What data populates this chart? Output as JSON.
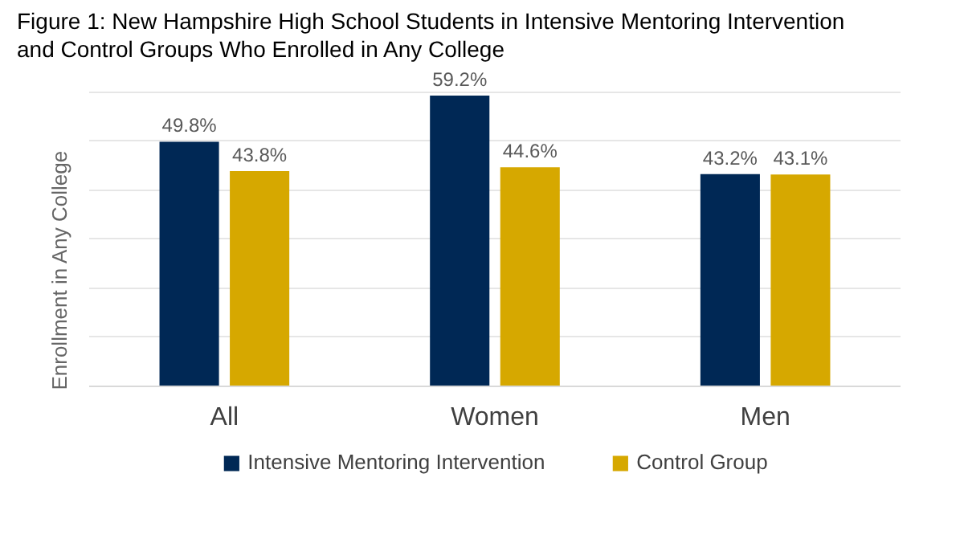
{
  "chart_data": {
    "type": "bar",
    "title": "Figure 1: New Hampshire High School Students in Intensive Mentoring Intervention\nand Control Groups Who Enrolled in Any College",
    "ylabel": "Enrollment in Any College",
    "categories": [
      "All",
      "Women",
      "Men"
    ],
    "series": [
      {
        "name": "Intensive Mentoring Intervention",
        "color": "#002855",
        "values": [
          49.8,
          59.2,
          43.2
        ],
        "value_labels": [
          "49.8%",
          "59.2%",
          "43.2%"
        ]
      },
      {
        "name": "Control Group",
        "color": "#d6a800",
        "values": [
          43.8,
          44.6,
          43.1
        ],
        "value_labels": [
          "43.8%",
          "44.6%",
          "43.1%"
        ]
      }
    ],
    "yticks": [
      {
        "value": 0,
        "label": null
      },
      {
        "value": 10,
        "label": null
      },
      {
        "value": 20,
        "label": null
      },
      {
        "value": 30,
        "label": null
      },
      {
        "value": 40,
        "label": null
      },
      {
        "value": 50,
        "label": null
      },
      {
        "value": 60,
        "label": null
      }
    ],
    "tick_labels": "x",
    "grid": "y",
    "legend": "bottom"
  }
}
